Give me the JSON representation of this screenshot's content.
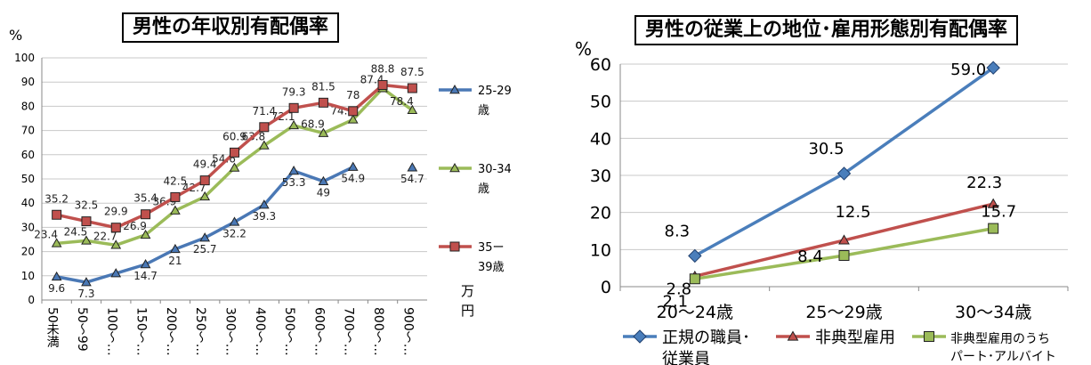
{
  "chart_data": [
    {
      "type": "line",
      "title": "男性の年収別有配偶率",
      "ylabel": "%",
      "xunit": "万\n円",
      "ylim": [
        0,
        100
      ],
      "yticks": [
        "0",
        "10",
        "20",
        "30",
        "40",
        "50",
        "60",
        "70",
        "80",
        "90",
        "100"
      ],
      "categories": [
        "50未満",
        "50～99",
        "100～…",
        "150～…",
        "200～…",
        "250～…",
        "300～…",
        "400～…",
        "500～…",
        "600～…",
        "700～…",
        "800～…",
        "900～…"
      ],
      "grid": true,
      "legend_position": "right",
      "series": [
        {
          "name": "25-29\n歳",
          "color": "#4a78b5",
          "values": [
            9.6,
            7.3,
            11.0,
            14.7,
            21,
            25.7,
            32.2,
            39.3,
            53.3,
            49,
            54.9,
            null,
            54.7
          ],
          "labels": [
            "9.6",
            "7.3",
            "",
            "14.7",
            "21",
            "25.7",
            "32.2",
            "39.3",
            "53.3",
            "49",
            "54.9",
            "",
            "54.7"
          ]
        },
        {
          "name": "30-34\n歳",
          "color": "#9bbb59",
          "values": [
            23.4,
            24.5,
            22.7,
            26.9,
            36.9,
            42.7,
            54.6,
            63.8,
            72.1,
            68.9,
            74.5,
            87.4,
            78.4
          ],
          "labels": [
            "23.4",
            "24.5",
            "22.7",
            "26.9",
            "36.9",
            "42.7",
            "54.6",
            "63.8",
            "72.1",
            "68.9",
            "74.5",
            "87.4",
            "78.4"
          ]
        },
        {
          "name": "35ー\n39歳",
          "color": "#c0504d",
          "values": [
            35.2,
            32.5,
            29.9,
            35.4,
            42.5,
            49.4,
            60.9,
            71.4,
            79.3,
            81.5,
            78,
            88.8,
            87.5
          ],
          "labels": [
            "35.2",
            "32.5",
            "29.9",
            "35.4",
            "42.5",
            "49.4",
            "60.9",
            "71.4",
            "79.3",
            "81.5",
            "78",
            "88.8",
            "87.5"
          ]
        }
      ]
    },
    {
      "type": "line",
      "title": "男性の従業上の地位･雇用形態別有配偶率",
      "ylabel": "%",
      "ylim": [
        0,
        60
      ],
      "yticks": [
        "0",
        "10",
        "20",
        "30",
        "40",
        "50",
        "60"
      ],
      "categories": [
        "20～24歳",
        "25～29歳",
        "30～34歳"
      ],
      "grid": true,
      "legend_position": "bottom",
      "series": [
        {
          "name": "正規の職員･\n従業員",
          "color": "#4a7ebb",
          "values": [
            8.3,
            30.5,
            59.0
          ],
          "labels": [
            "8.3",
            "30.5",
            "59.0"
          ]
        },
        {
          "name": "非典型雇用",
          "color": "#c0504d",
          "values": [
            2.8,
            12.5,
            22.3
          ],
          "labels": [
            "2.8",
            "12.5",
            "22.3"
          ]
        },
        {
          "name": "非典型雇用のうち\nパート･アルバイト",
          "color": "#9bbb59",
          "values": [
            2.1,
            8.4,
            15.7
          ],
          "labels": [
            "2.1",
            "8.4",
            "15.7"
          ]
        }
      ]
    }
  ]
}
